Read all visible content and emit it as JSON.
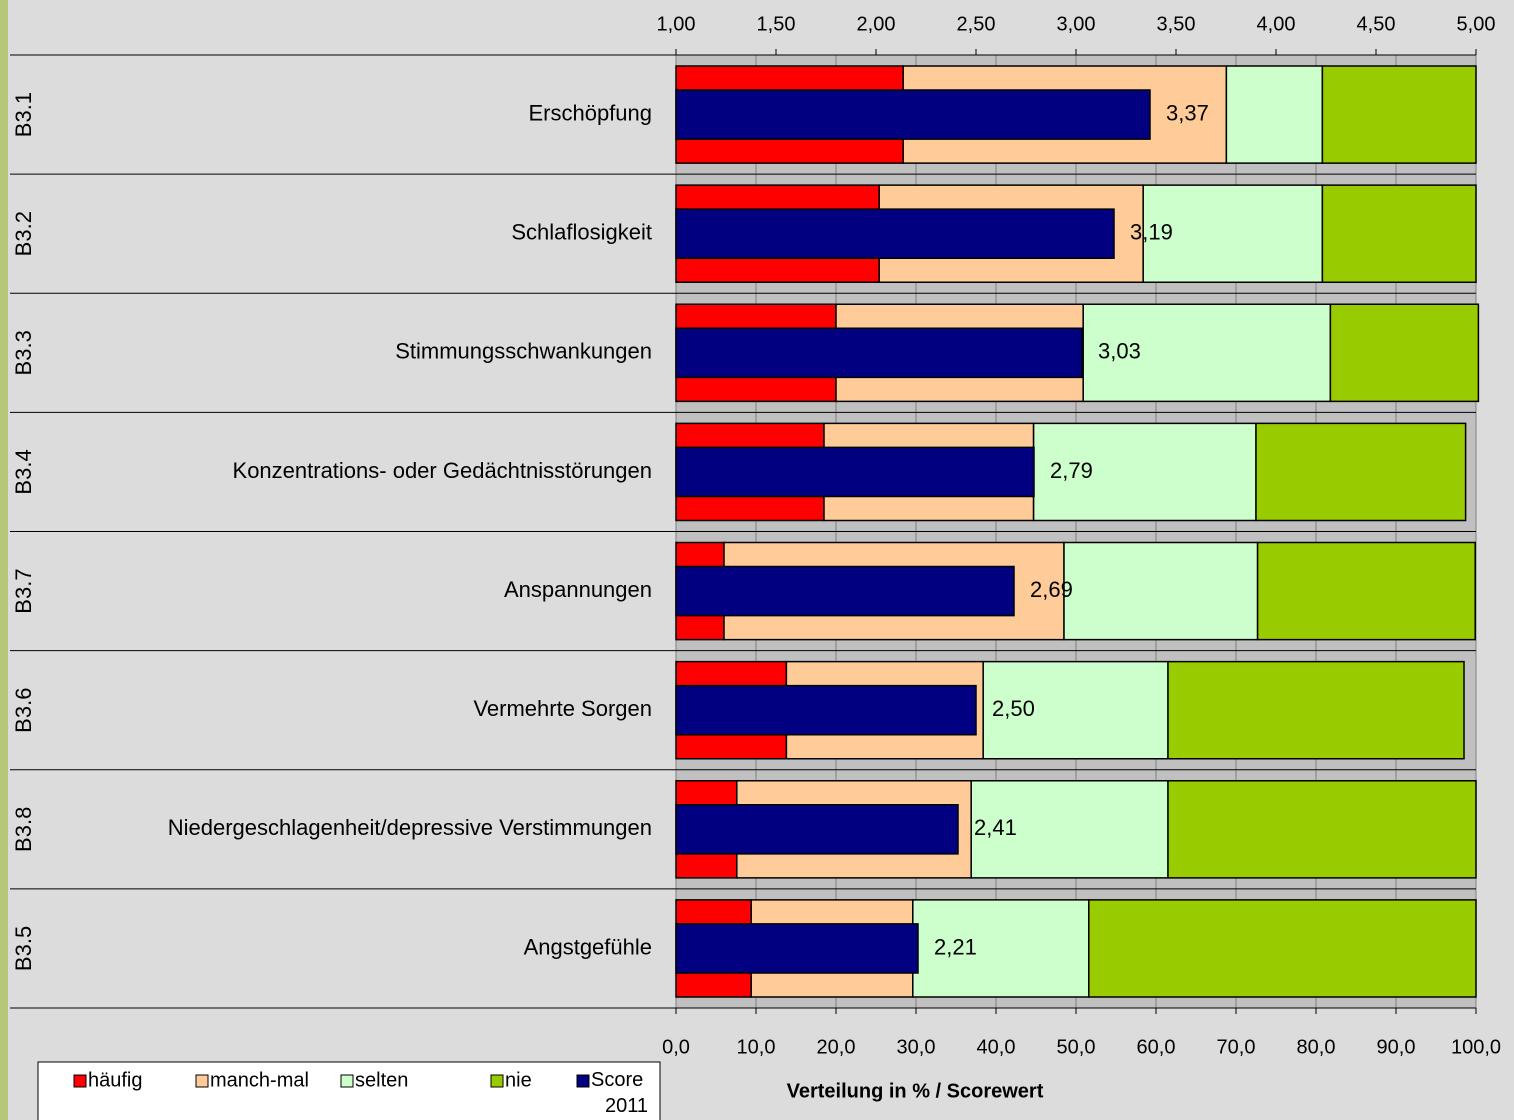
{
  "chart_data": {
    "type": "bar",
    "codes": [
      "B3.1",
      "B3.2",
      "B3.3",
      "B3.4",
      "B3.7",
      "B3.6",
      "B3.8",
      "B3.5"
    ],
    "categories": [
      "Erschöpfung",
      "Schlaflosigkeit",
      "Stimmungsschwankungen",
      "Konzentrations- oder Gedächtnisstörungen",
      "Anspannungen",
      "Vermehrte Sorgen",
      "Niedergeschlagenheit/depressive Verstimmungen",
      "Angstgefühle"
    ],
    "series": [
      {
        "name": "häufig",
        "color": "#ff0000",
        "values": [
          28.4,
          25.4,
          20.0,
          18.5,
          6.0,
          13.8,
          7.6,
          9.4
        ]
      },
      {
        "name": "manch-mal",
        "color": "#ffcc99",
        "values": [
          40.4,
          33.0,
          30.9,
          26.2,
          42.5,
          24.6,
          29.3,
          20.2
        ]
      },
      {
        "name": "selten",
        "color": "#ccffcc",
        "values": [
          12.0,
          22.4,
          30.9,
          27.8,
          24.2,
          23.1,
          24.6,
          22.0
        ]
      },
      {
        "name": "nie",
        "color": "#99cc00",
        "values": [
          19.2,
          19.2,
          18.5,
          26.2,
          27.2,
          37.0,
          38.5,
          48.4
        ]
      }
    ],
    "score": {
      "name": "Score 2011",
      "color": "#000080",
      "values": [
        3.37,
        3.19,
        3.03,
        2.79,
        2.69,
        2.5,
        2.41,
        2.21
      ],
      "value_labels": [
        "3,37",
        "3,19",
        "3,03",
        "2,79",
        "2,69",
        "2,50",
        "2,41",
        "2,21"
      ]
    },
    "xlabel": "Verteilung in % / Scorewert",
    "xlim": [
      0,
      100
    ],
    "xticks": [
      {
        "value": 0,
        "label": "0,0"
      },
      {
        "value": 10,
        "label": "10,0"
      },
      {
        "value": 20,
        "label": "20,0"
      },
      {
        "value": 30,
        "label": "30,0"
      },
      {
        "value": 40,
        "label": "40,0"
      },
      {
        "value": 50,
        "label": "50,0"
      },
      {
        "value": 60,
        "label": "60,0"
      },
      {
        "value": 70,
        "label": "70,0"
      },
      {
        "value": 80,
        "label": "80,0"
      },
      {
        "value": 90,
        "label": "90,0"
      },
      {
        "value": 100,
        "label": "100,0"
      }
    ],
    "x2lim": [
      1,
      5
    ],
    "x2ticks": [
      {
        "value": 1,
        "label": "1,00"
      },
      {
        "value": 1.5,
        "label": "1,50"
      },
      {
        "value": 2,
        "label": "2,00"
      },
      {
        "value": 2.5,
        "label": "2,50"
      },
      {
        "value": 3,
        "label": "3,00"
      },
      {
        "value": 3.5,
        "label": "3,50"
      },
      {
        "value": 4,
        "label": "4,00"
      },
      {
        "value": 4.5,
        "label": "4,50"
      },
      {
        "value": 5,
        "label": "5,00"
      }
    ],
    "grid": true
  }
}
